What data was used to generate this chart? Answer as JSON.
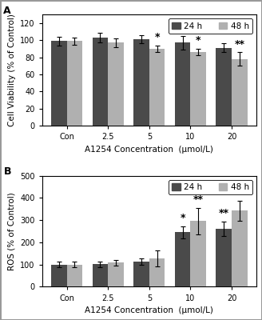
{
  "panel_A": {
    "categories": [
      "Con",
      "2.5",
      "5",
      "10",
      "20"
    ],
    "bar24_values": [
      99,
      103,
      101,
      97,
      91
    ],
    "bar48_values": [
      99,
      97,
      90,
      86,
      78
    ],
    "bar24_errors": [
      5,
      6,
      5,
      8,
      5
    ],
    "bar48_errors": [
      4,
      5,
      4,
      4,
      8
    ],
    "ylabel": "Cell Viability (% of Control)",
    "xlabel": "A1254 Concentration  (μmol/L)",
    "ylim": [
      0,
      130
    ],
    "yticks": [
      0,
      20,
      40,
      60,
      80,
      100,
      120
    ],
    "panel_label": "A",
    "significance_24": [
      "",
      "",
      "",
      "",
      ""
    ],
    "significance_48": [
      "",
      "",
      "*",
      "*",
      "**"
    ],
    "legend_loc": "upper right"
  },
  "panel_B": {
    "categories": [
      "Con",
      "2.5",
      "5",
      "10",
      "20"
    ],
    "bar24_values": [
      100,
      101,
      113,
      245,
      262
    ],
    "bar48_values": [
      100,
      108,
      128,
      295,
      342
    ],
    "bar24_errors": [
      12,
      12,
      14,
      28,
      32
    ],
    "bar48_errors": [
      12,
      14,
      35,
      60,
      45
    ],
    "ylabel": "ROS (% of Control)",
    "xlabel": "A1254 Concentration  (μmol/L)",
    "ylim": [
      0,
      500
    ],
    "yticks": [
      0,
      100,
      200,
      300,
      400,
      500
    ],
    "panel_label": "B",
    "significance_24": [
      "",
      "",
      "",
      "*",
      "**"
    ],
    "significance_48": [
      "",
      "",
      "",
      "**",
      "**"
    ],
    "legend_loc": "upper right"
  },
  "color_24h": "#4a4a4a",
  "color_48h": "#b0b0b0",
  "bar_width": 0.38,
  "legend_labels": [
    "24 h",
    "48 h"
  ],
  "background_color": "#ffffff",
  "border_color": "#cccccc",
  "fontsize_label": 7.5,
  "fontsize_tick": 7,
  "fontsize_panel": 9,
  "fontsize_legend": 7.5,
  "fontsize_sig": 9
}
